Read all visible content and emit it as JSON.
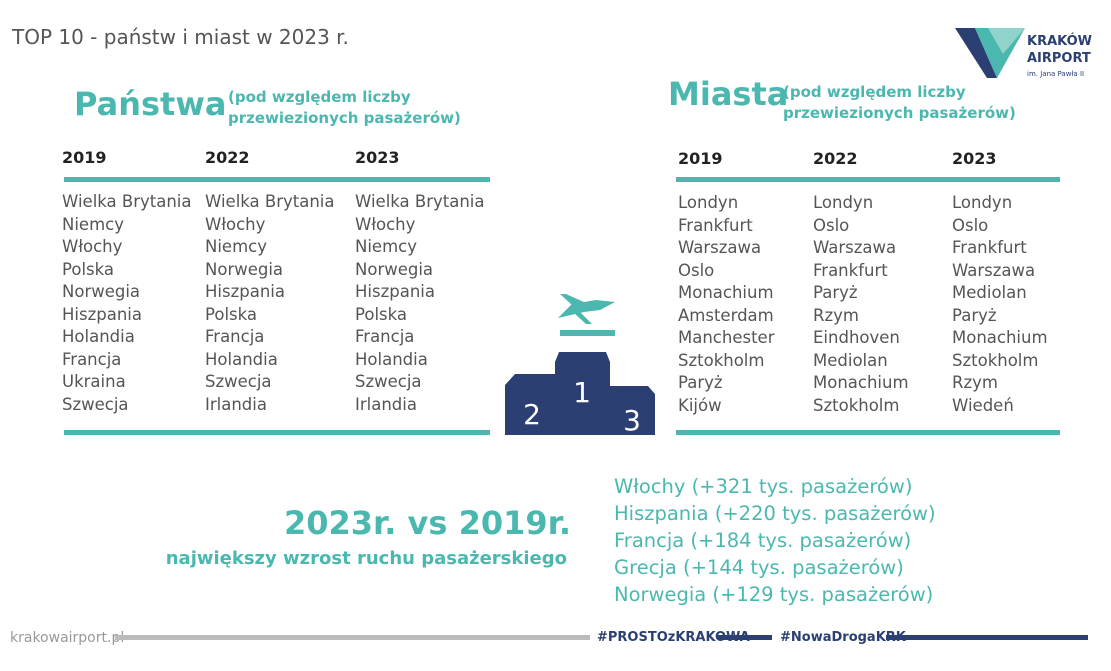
{
  "header": {
    "title": "TOP 10 - państw i miast w 2023 r."
  },
  "logo": {
    "line1": "KRAKÓW",
    "line2": "AIRPORT",
    "line3": "im. Jana Pawła II"
  },
  "countries": {
    "title": "Państwa",
    "subtitle": [
      "(pod względem liczby",
      "przewiezionych pasażerów)"
    ],
    "years": [
      "2019",
      "2022",
      "2023"
    ],
    "columns": [
      [
        "Wielka Brytania",
        "Niemcy",
        "Włochy",
        "Polska",
        "Norwegia",
        "Hiszpania",
        "Holandia",
        "Francja",
        "Ukraina",
        "Szwecja"
      ],
      [
        "Wielka Brytania",
        "Włochy",
        "Niemcy",
        "Norwegia",
        "Hiszpania",
        "Polska",
        "Francja",
        "Holandia",
        "Szwecja",
        "Irlandia"
      ],
      [
        "Wielka Brytania",
        "Włochy",
        "Niemcy",
        "Norwegia",
        "Hiszpania",
        "Polska",
        "Francja",
        "Holandia",
        "Szwecja",
        "Irlandia"
      ]
    ]
  },
  "cities": {
    "title": "Miasta",
    "subtitle": [
      "(pod względem liczby",
      "przewiezionych pasażerów)"
    ],
    "years": [
      "2019",
      "2022",
      "2023"
    ],
    "columns": [
      [
        "Londyn",
        "Frankfurt",
        "Warszawa",
        "Oslo",
        "Monachium",
        "Amsterdam",
        "Manchester",
        "Sztokholm",
        "Paryż",
        "Kijów"
      ],
      [
        "Londyn",
        "Oslo",
        "Warszawa",
        "Frankfurt",
        "Paryż",
        "Rzym",
        "Eindhoven",
        "Mediolan",
        "Monachium",
        "Sztokholm"
      ],
      [
        "Londyn",
        "Oslo",
        "Frankfurt",
        "Warszawa",
        "Mediolan",
        "Paryż",
        "Monachium",
        "Sztokholm",
        "Rzym",
        "Wiedeń"
      ]
    ]
  },
  "podium": [
    "1",
    "2",
    "3"
  ],
  "comparison": {
    "title": "2023r. vs 2019r.",
    "subtitle": "największy wzrost ruchu pasażerskiego",
    "items": [
      "Włochy (+321 tys. pasażerów)",
      "Hiszpania (+220 tys. pasażerów)",
      "Francja (+184 tys. pasażerów)",
      "Grecja (+144 tys. pasażerów)",
      "Norwegia (+129 tys. pasażerów)"
    ]
  },
  "footer": {
    "site": "krakowairport.pl",
    "tag1": "#PROSTOzKRAKOWA",
    "tag2": "#NowaDrogaKRK"
  }
}
